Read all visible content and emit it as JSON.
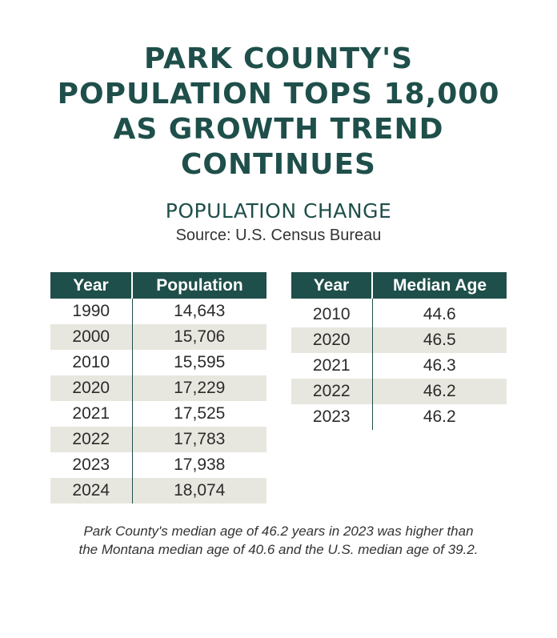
{
  "headline": {
    "line1": "PARK COUNTY'S",
    "line2": "POPULATION TOPS 18,000",
    "line3": "AS GROWTH TREND",
    "line4": "CONTINUES"
  },
  "subtitle": "POPULATION CHANGE",
  "source": "Source: U.S. Census Bureau",
  "colors": {
    "header_bg": "#1f4f4a",
    "stripe_bg": "#e8e7df",
    "title_color": "#1f4f4a"
  },
  "chart_data": [
    {
      "type": "table",
      "title": "Population",
      "columns": [
        "Year",
        "Population"
      ],
      "rows": [
        [
          "1990",
          "14,643"
        ],
        [
          "2000",
          "15,706"
        ],
        [
          "2010",
          "15,595"
        ],
        [
          "2020",
          "17,229"
        ],
        [
          "2021",
          "17,525"
        ],
        [
          "2022",
          "17,783"
        ],
        [
          "2023",
          "17,938"
        ],
        [
          "2024",
          "18,074"
        ]
      ]
    },
    {
      "type": "table",
      "title": "Median Age",
      "columns": [
        "Year",
        "Median Age"
      ],
      "rows": [
        [
          "2010",
          "44.6"
        ],
        [
          "2020",
          "46.5"
        ],
        [
          "2021",
          "46.3"
        ],
        [
          "2022",
          "46.2"
        ],
        [
          "2023",
          "46.2"
        ]
      ]
    }
  ],
  "footnote": {
    "line1": "Park County's median age of 46.2 years in 2023 was higher than",
    "line2": "the Montana median age of 40.6 and the U.S. median age of 39.2."
  }
}
